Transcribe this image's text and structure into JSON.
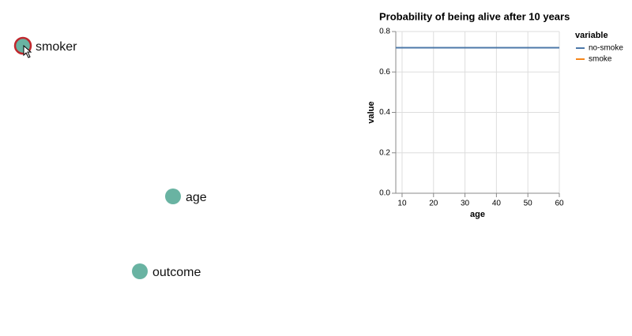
{
  "nodes": [
    {
      "label": "smoker",
      "selected": true
    },
    {
      "label": "age",
      "selected": false
    },
    {
      "label": "outcome",
      "selected": false
    }
  ],
  "chart_data": {
    "type": "line",
    "title": "Probability of being alive after 10 years",
    "x_label": "age",
    "y_label": "value",
    "x": [
      8,
      60
    ],
    "series": [
      {
        "name": "no-smoke",
        "color": "#4c78a8",
        "values": [
          0.72,
          0.72
        ]
      },
      {
        "name": "smoke",
        "color": "#f58518",
        "values": [
          null,
          null
        ]
      }
    ],
    "xlim": [
      8,
      60
    ],
    "xticks": [
      10,
      20,
      30,
      40,
      50,
      60
    ],
    "ylim": [
      0,
      0.8
    ],
    "yticks": [
      {
        "value": 0,
        "label": "0.0"
      },
      0.2,
      0.4,
      0.6,
      0.8
    ],
    "grid": true,
    "legend_title": "variable"
  }
}
